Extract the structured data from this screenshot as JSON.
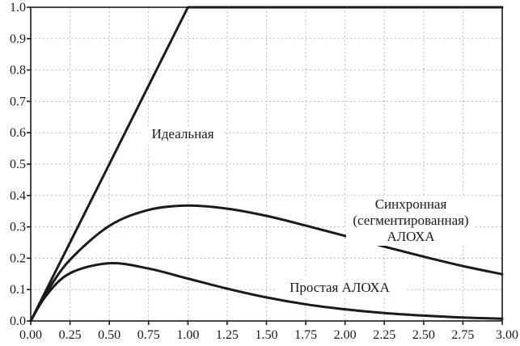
{
  "chart_data": {
    "type": "line",
    "title": "",
    "xlabel": "",
    "ylabel": "",
    "xlim": [
      0,
      3
    ],
    "ylim": [
      0,
      1
    ],
    "grid": true,
    "x_ticks": [
      "0.00",
      "0.25",
      "0.50",
      "0.75",
      "1.00",
      "1.25",
      "1.50",
      "1.75",
      "2.00",
      "2.25",
      "2.50",
      "2.75",
      "3.00"
    ],
    "y_ticks": [
      "0.0",
      "0.1",
      "0.2",
      "0.3",
      "0.4",
      "0.5",
      "0.6",
      "0.7",
      "0.8",
      "0.9",
      "1.0"
    ],
    "series": [
      {
        "name": "Идеальная",
        "x": [
          0,
          1,
          3
        ],
        "y": [
          0,
          1,
          1
        ]
      },
      {
        "name_lines": [
          "Синхронная",
          "(сегментированная)",
          "АЛОХА"
        ],
        "x": [
          0,
          0.1,
          0.25,
          0.5,
          0.75,
          1,
          1.25,
          1.5,
          1.75,
          2,
          2.25,
          2.5,
          2.75,
          3
        ],
        "y": [
          0,
          0.09,
          0.195,
          0.303,
          0.354,
          0.368,
          0.358,
          0.335,
          0.304,
          0.271,
          0.237,
          0.205,
          0.175,
          0.149
        ]
      },
      {
        "name": "Простая АЛОХА",
        "x": [
          0,
          0.1,
          0.25,
          0.5,
          0.75,
          1,
          1.25,
          1.5,
          1.75,
          2,
          2.25,
          2.5,
          2.75,
          3
        ],
        "y": [
          0,
          0.082,
          0.152,
          0.184,
          0.167,
          0.135,
          0.103,
          0.075,
          0.053,
          0.037,
          0.025,
          0.017,
          0.011,
          0.007
        ]
      }
    ]
  }
}
